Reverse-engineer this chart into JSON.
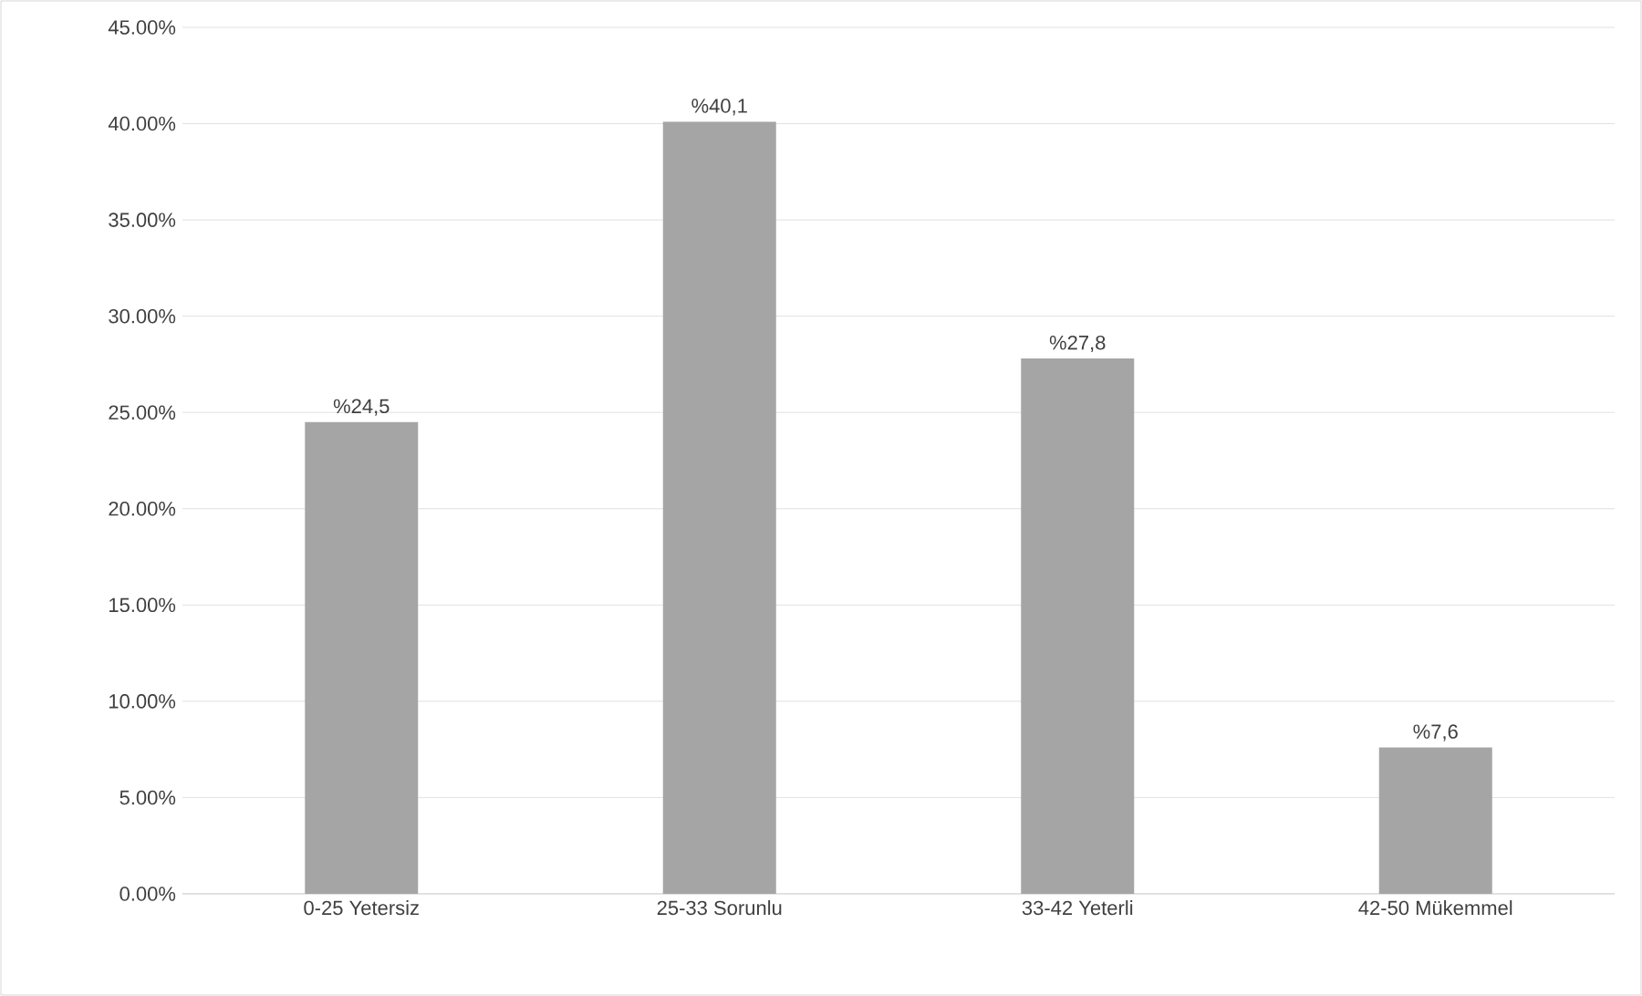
{
  "chart_data": {
    "type": "bar",
    "categories": [
      "0-25 Yetersiz",
      "25-33 Sorunlu",
      "33-42 Yeterli",
      "42-50 Mükemmel"
    ],
    "values": [
      24.5,
      40.1,
      27.8,
      7.6
    ],
    "value_labels": [
      "%24,5",
      "%40,1",
      "%27,8",
      "%7,6"
    ],
    "color": "#a5a5a5",
    "ylim": [
      0,
      45
    ],
    "yticks": [
      {
        "value": 0,
        "label": "0.00%"
      },
      {
        "value": 5,
        "label": "5.00%"
      },
      {
        "value": 10,
        "label": "10.00%"
      },
      {
        "value": 15,
        "label": "15.00%"
      },
      {
        "value": 20,
        "label": "20.00%"
      },
      {
        "value": 25,
        "label": "25.00%"
      },
      {
        "value": 30,
        "label": "30.00%"
      },
      {
        "value": 35,
        "label": "35.00%"
      },
      {
        "value": 40,
        "label": "40.00%"
      },
      {
        "value": 45,
        "label": "45.00%"
      }
    ],
    "grid": "y"
  }
}
